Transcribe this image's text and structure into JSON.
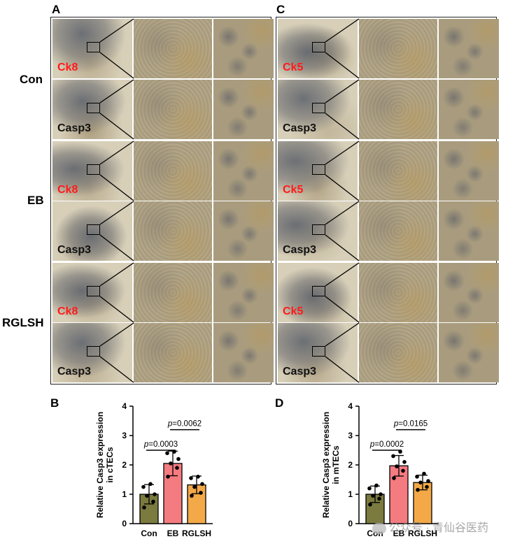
{
  "panels": {
    "a": "A",
    "b": "B",
    "c": "C",
    "d": "D"
  },
  "row_labels": [
    "Con",
    "EB",
    "RGLSH"
  ],
  "panel_a_stains": [
    "Ck8",
    "Casp3",
    "Ck8",
    "Casp3",
    "Ck8",
    "Casp3"
  ],
  "panel_c_stains": [
    "Ck5",
    "Casp3",
    "Ck5",
    "Casp3",
    "Ck5",
    "Casp3"
  ],
  "colors": {
    "stain_red": "#ff1a1a",
    "con_bar": "#7b7a3f",
    "eb_bar": "#f47b80",
    "rglsh_bar": "#f3a948",
    "tissue_bg": "#d7cfb8",
    "tissue_dark": "#7f7a74",
    "tissue_brown": "#b99a5c"
  },
  "chart_data": [
    {
      "type": "bar",
      "panel": "B",
      "categories": [
        "Con",
        "EB",
        "RGLSH"
      ],
      "values": [
        1.0,
        2.05,
        1.32
      ],
      "errors": [
        0.33,
        0.42,
        0.3
      ],
      "points": [
        [
          0.55,
          0.75,
          0.95,
          1.0,
          1.25,
          1.35
        ],
        [
          1.6,
          1.9,
          2.05,
          2.2,
          2.4,
          2.45
        ],
        [
          0.95,
          1.05,
          1.25,
          1.35,
          1.55,
          1.6
        ]
      ],
      "ylabel": "Relative Casp3 expression in cTECs",
      "ylim": [
        0,
        4
      ],
      "yticks": [
        "0",
        "1",
        "2",
        "3",
        "4"
      ],
      "annotations": [
        {
          "from": 0,
          "to": 1,
          "text": "p=0.0003"
        },
        {
          "from": 1,
          "to": 2,
          "text": "p=0.0062"
        }
      ]
    },
    {
      "type": "bar",
      "panel": "D",
      "categories": [
        "Con",
        "EB",
        "RGLSH"
      ],
      "values": [
        1.0,
        1.97,
        1.4
      ],
      "errors": [
        0.28,
        0.35,
        0.25
      ],
      "points": [
        [
          0.65,
          0.85,
          0.95,
          1.0,
          1.2,
          1.3
        ],
        [
          1.55,
          1.8,
          1.95,
          2.1,
          2.3,
          2.45
        ],
        [
          1.15,
          1.25,
          1.4,
          1.45,
          1.6,
          1.7
        ]
      ],
      "ylabel": "Relative Casp3 expression in mTECs",
      "ylim": [
        0,
        4
      ],
      "yticks": [
        "0",
        "1",
        "2",
        "3",
        "4"
      ],
      "annotations": [
        {
          "from": 0,
          "to": 1,
          "text": "p=0.0002"
        },
        {
          "from": 1,
          "to": 2,
          "text": "p=0.0165"
        }
      ]
    }
  ],
  "watermark": "公众号 · 青仙谷医药"
}
